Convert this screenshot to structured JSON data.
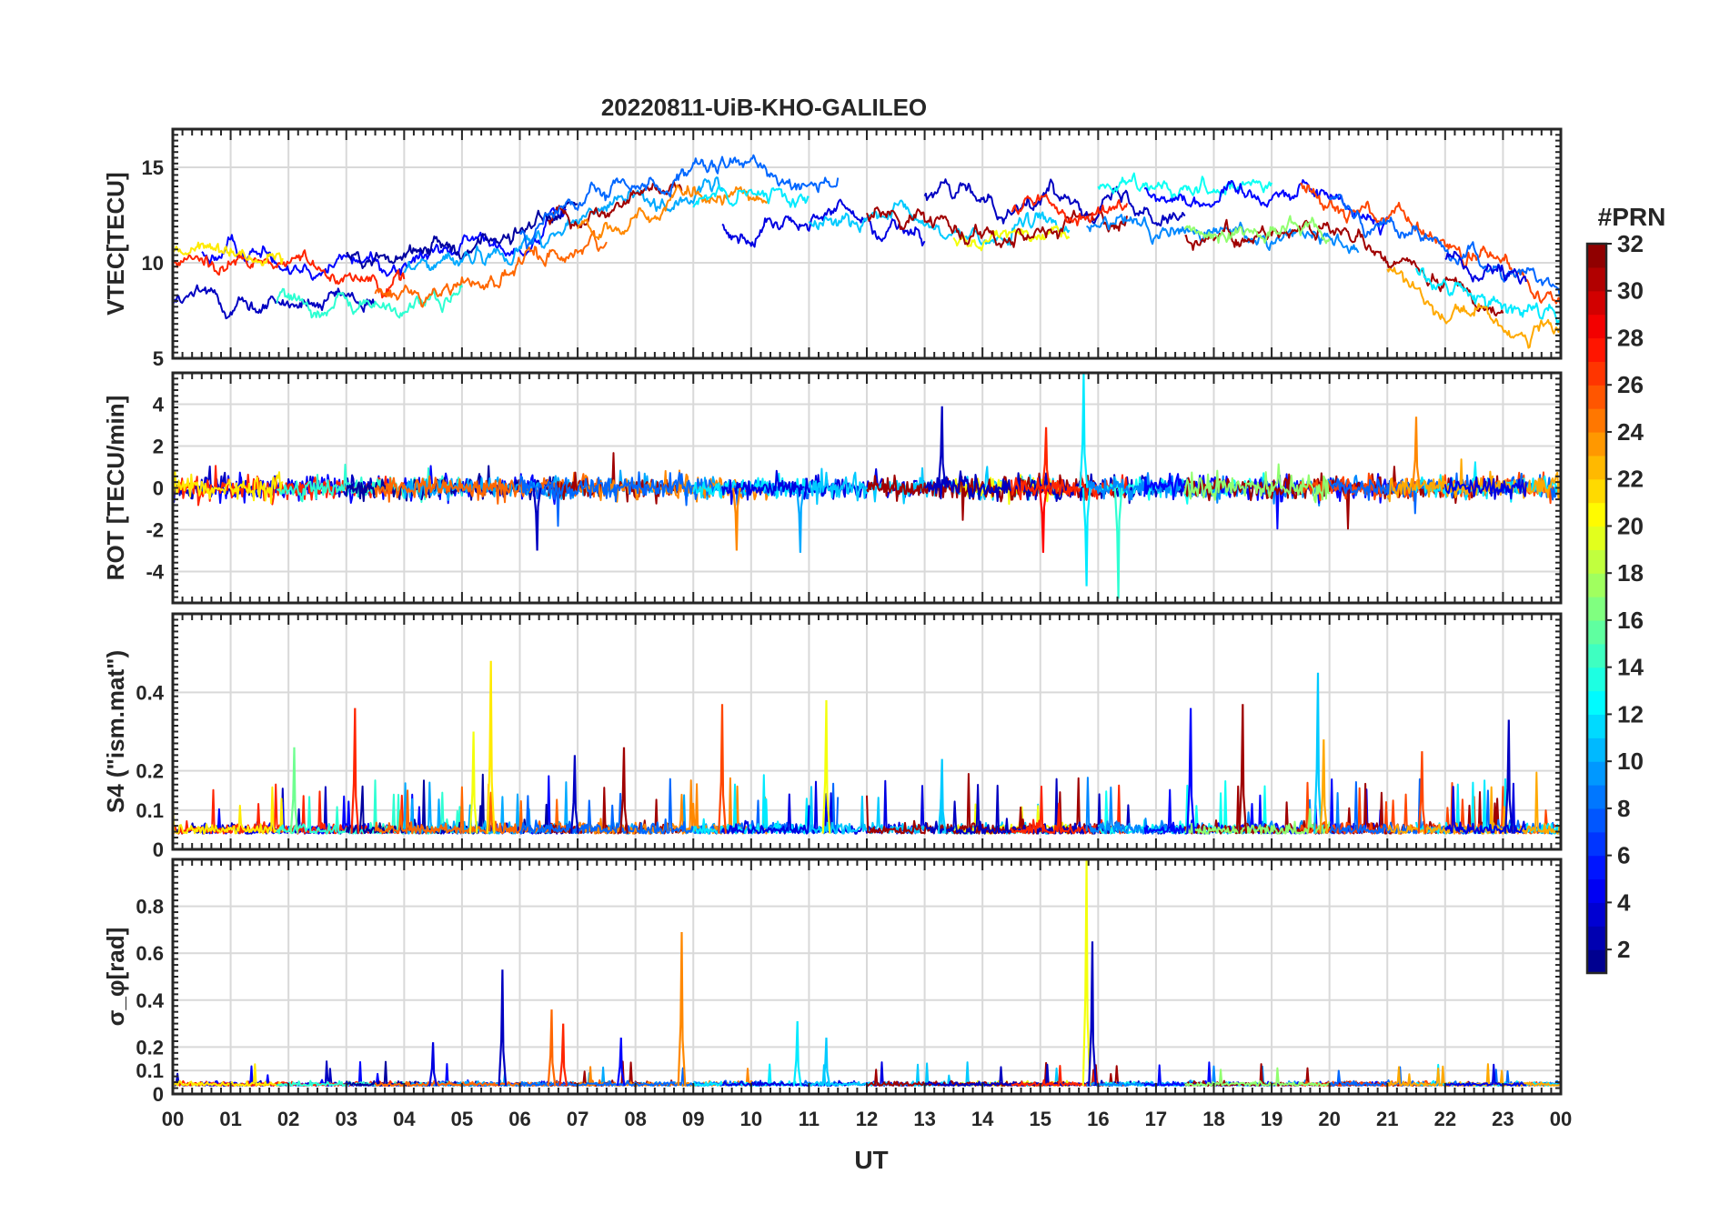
{
  "chart_data": {
    "type": "line",
    "title": "20220811-UiB-KHO-GALILEO",
    "xlabel": "UT",
    "x_tick_labels": [
      "00",
      "01",
      "02",
      "03",
      "04",
      "05",
      "06",
      "07",
      "08",
      "09",
      "10",
      "11",
      "12",
      "13",
      "14",
      "15",
      "16",
      "17",
      "18",
      "19",
      "20",
      "21",
      "22",
      "23",
      "00"
    ],
    "xlim_hours": [
      0,
      24
    ],
    "grid": true,
    "colorbar": {
      "title": "#PRN",
      "range": [
        1,
        32
      ],
      "tick_labels": [
        "2",
        "4",
        "6",
        "8",
        "10",
        "12",
        "14",
        "16",
        "18",
        "20",
        "22",
        "24",
        "26",
        "28",
        "30",
        "32"
      ],
      "colormap": "jet"
    },
    "panels": [
      {
        "name": "vtec",
        "ylabel": "VTEC[TECU]",
        "ylim": [
          5,
          17
        ],
        "yticks": [
          5,
          10,
          15
        ],
        "ytick_labels": [
          "5",
          "10",
          "15"
        ],
        "trend_hours": [
          0,
          2,
          4,
          6,
          8,
          10,
          12,
          14,
          16,
          18,
          19.5,
          21,
          22.5,
          24
        ],
        "trend_values": [
          9.5,
          9.3,
          8.8,
          10.3,
          12.5,
          13.2,
          13.0,
          12.5,
          12.8,
          12.2,
          12.8,
          11.0,
          8.8,
          7.5
        ],
        "spread": 1.6,
        "noise": 0.5,
        "kind": "vtec"
      },
      {
        "name": "rot",
        "ylabel": "ROT [TECU/min]",
        "ylim": [
          -5.5,
          5.5
        ],
        "yticks": [
          -4,
          -2,
          0,
          2,
          4
        ],
        "ytick_labels": [
          "-4",
          "-2",
          "0",
          "2",
          "4"
        ],
        "baseline": 0,
        "noise": 0.55,
        "spikes": [
          {
            "hour": 13.3,
            "value": 3.9,
            "prn": 3
          },
          {
            "hour": 15.75,
            "value": 5.5,
            "prn": 12
          },
          {
            "hour": 15.8,
            "value": -4.7,
            "prn": 12
          },
          {
            "hour": 16.35,
            "value": -5.3,
            "prn": 14
          },
          {
            "hour": 15.1,
            "value": 2.9,
            "prn": 27
          },
          {
            "hour": 21.5,
            "value": 3.4,
            "prn": 24
          },
          {
            "hour": 9.75,
            "value": -3.0,
            "prn": 24
          },
          {
            "hour": 10.85,
            "value": -3.1,
            "prn": 10
          },
          {
            "hour": 15.05,
            "value": -3.1,
            "prn": 28
          },
          {
            "hour": 6.3,
            "value": -3.0,
            "prn": 3
          }
        ],
        "kind": "rot"
      },
      {
        "name": "s4",
        "ylabel": "S4 (\"ism.mat\")",
        "ylim": [
          0,
          0.6
        ],
        "yticks": [
          0,
          0.1,
          0.2,
          0.4
        ],
        "ytick_labels": [
          "0",
          "0.1",
          "0.2",
          "0.4"
        ],
        "baseline": 0.04,
        "noise": 0.03,
        "spikes": [
          {
            "hour": 3.15,
            "value": 0.36,
            "prn": 27
          },
          {
            "hour": 5.5,
            "value": 0.48,
            "prn": 21
          },
          {
            "hour": 5.2,
            "value": 0.3,
            "prn": 20
          },
          {
            "hour": 9.5,
            "value": 0.37,
            "prn": 26
          },
          {
            "hour": 11.3,
            "value": 0.38,
            "prn": 20
          },
          {
            "hour": 7.8,
            "value": 0.26,
            "prn": 31
          },
          {
            "hour": 6.95,
            "value": 0.24,
            "prn": 3
          },
          {
            "hour": 17.6,
            "value": 0.36,
            "prn": 5
          },
          {
            "hour": 18.5,
            "value": 0.37,
            "prn": 31
          },
          {
            "hour": 19.8,
            "value": 0.45,
            "prn": 11
          },
          {
            "hour": 19.9,
            "value": 0.28,
            "prn": 23
          },
          {
            "hour": 23.1,
            "value": 0.33,
            "prn": 3
          },
          {
            "hour": 21.6,
            "value": 0.25,
            "prn": 26
          },
          {
            "hour": 2.1,
            "value": 0.26,
            "prn": 16
          },
          {
            "hour": 13.3,
            "value": 0.23,
            "prn": 11
          }
        ],
        "kind": "s4"
      },
      {
        "name": "sigma_phi",
        "ylabel": "σ_φ[rad]",
        "ylim": [
          0,
          1.0
        ],
        "yticks": [
          0,
          0.1,
          0.2,
          0.4,
          0.6,
          0.8
        ],
        "ytick_labels": [
          "0",
          "0.1",
          "0.2",
          "0.4",
          "0.6",
          "0.8"
        ],
        "baseline": 0.035,
        "noise": 0.015,
        "spikes": [
          {
            "hour": 5.7,
            "value": 0.53,
            "prn": 3
          },
          {
            "hour": 6.55,
            "value": 0.36,
            "prn": 25
          },
          {
            "hour": 6.75,
            "value": 0.3,
            "prn": 27
          },
          {
            "hour": 8.8,
            "value": 0.69,
            "prn": 24
          },
          {
            "hour": 10.8,
            "value": 0.31,
            "prn": 12
          },
          {
            "hour": 11.3,
            "value": 0.24,
            "prn": 11
          },
          {
            "hour": 15.8,
            "value": 1.0,
            "prn": 20
          },
          {
            "hour": 15.9,
            "value": 0.65,
            "prn": 3
          },
          {
            "hour": 4.5,
            "value": 0.22,
            "prn": 4
          },
          {
            "hour": 7.75,
            "value": 0.24,
            "prn": 5
          }
        ],
        "kind": "sigma"
      }
    ]
  }
}
